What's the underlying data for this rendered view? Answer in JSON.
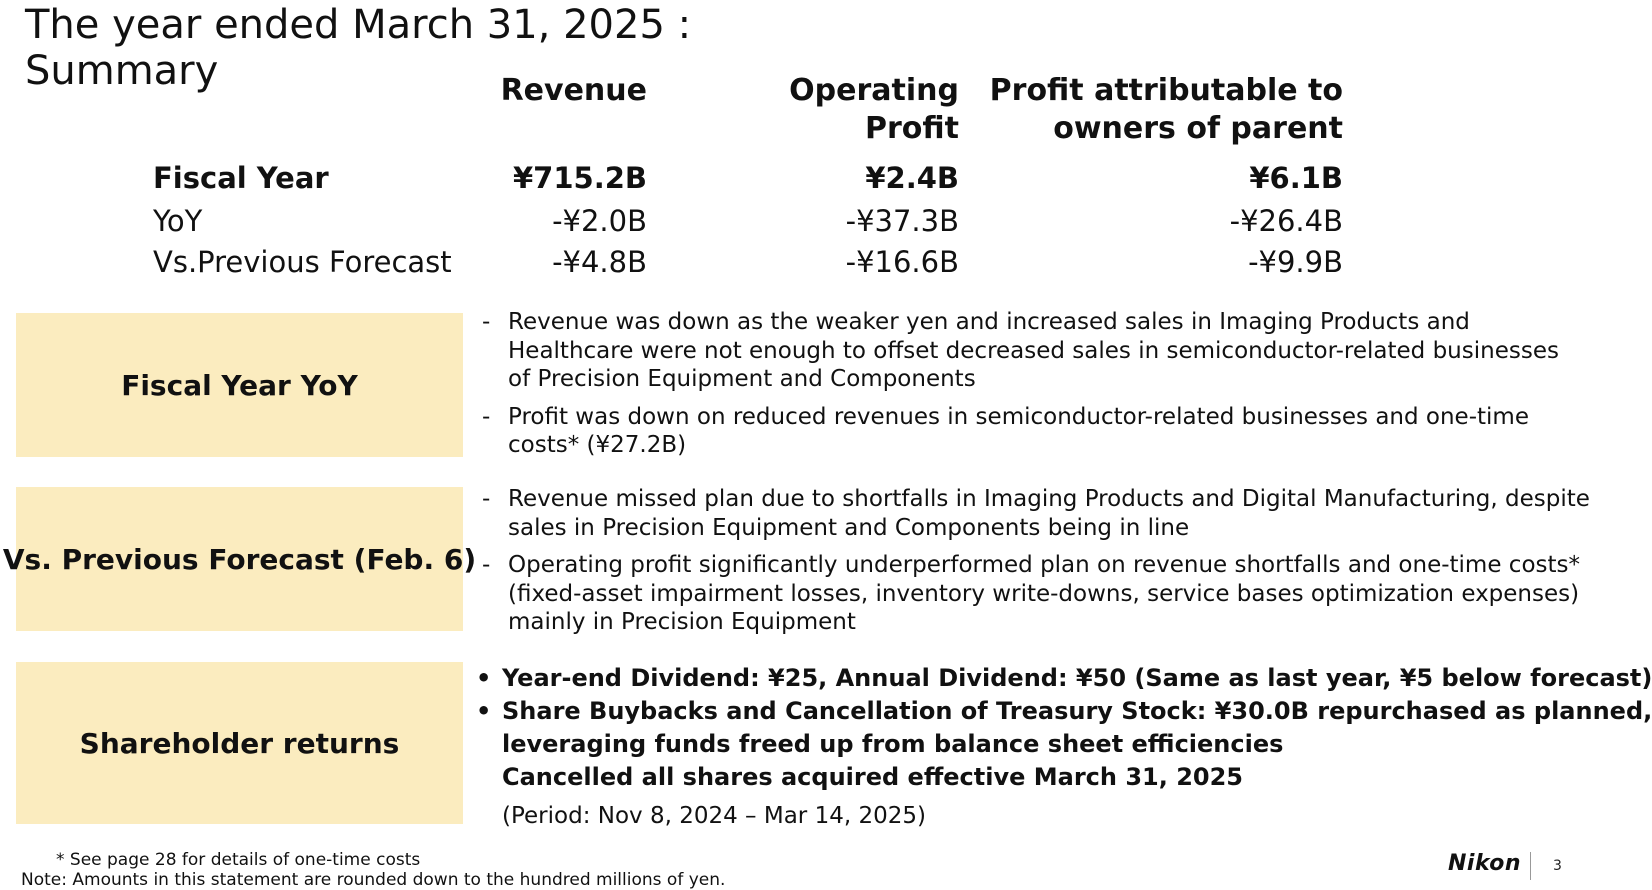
{
  "title": {
    "line1": "The year ended March 31, 2025 :",
    "line2": "Summary"
  },
  "table": {
    "columns": {
      "revenue": "Revenue",
      "operating_profit_line1": "Operating",
      "operating_profit_line2": "Profit",
      "profit_parent_line1": "Profit attributable to",
      "profit_parent_line2": "owners of parent"
    },
    "rows": [
      {
        "label": "Fiscal Year",
        "revenue": "¥715.2B",
        "operating_profit": "¥2.4B",
        "profit_parent": "¥6.1B"
      },
      {
        "label": "YoY",
        "revenue": "-¥2.0B",
        "operating_profit": "-¥37.3B",
        "profit_parent": "-¥26.4B"
      },
      {
        "label": "Vs.Previous Forecast",
        "revenue": "-¥4.8B",
        "operating_profit": "-¥16.6B",
        "profit_parent": "-¥9.9B"
      }
    ]
  },
  "sections": {
    "yoy": {
      "heading": "Fiscal Year YoY",
      "bullets": [
        "Revenue was down as the weaker yen and increased sales in Imaging Products and Healthcare were not enough to offset decreased sales in semiconductor-related businesses of Precision Equipment and Components",
        "Profit was down on reduced revenues in semiconductor-related businesses and one-time costs* (¥27.2B)"
      ]
    },
    "forecast": {
      "heading": "Vs. Previous Forecast (Feb. 6)",
      "bullets": [
        "Revenue missed plan due to shortfalls in Imaging Products and Digital Manufacturing, despite sales in Precision Equipment and Components being in line",
        "Operating profit significantly underperformed plan on revenue shortfalls and one-time costs* (fixed-asset impairment losses, inventory write-downs, service bases optimization expenses) mainly in Precision Equipment"
      ]
    },
    "shareholder": {
      "heading": "Shareholder returns",
      "item1": "Year-end Dividend: ¥25, Annual Dividend: ¥50 (Same as last year, ¥5 below forecast)",
      "item2_line1": "Share Buybacks and Cancellation of Treasury Stock: ¥30.0B repurchased as planned,",
      "item2_line2": "leveraging funds freed up from balance sheet efficiencies",
      "item2_line3": "Cancelled all shares acquired effective March 31, 2025",
      "period": "(Period: Nov 8, 2024 – Mar 14, 2025)"
    }
  },
  "markers": {
    "dash": "-",
    "dot": "•"
  },
  "footnotes": {
    "one_time": "* See page 28 for details of one-time costs",
    "note": "Note: Amounts in this statement are rounded down to the hundred millions of yen."
  },
  "logo_text": "Nikon",
  "page_number": "3",
  "colors": {
    "box_fill": "#fbecbf",
    "text": "#111111"
  }
}
